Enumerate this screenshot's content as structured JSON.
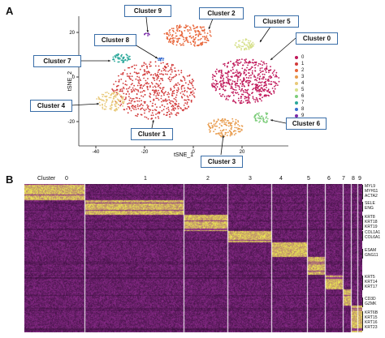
{
  "panels": {
    "a": "A",
    "b": "B"
  },
  "tsne": {
    "xlabel": "tSNE_1",
    "ylabel": "tSNE_2",
    "xticks": [
      "-40",
      "-20",
      "0",
      "20"
    ],
    "yticks": [
      "20",
      "0",
      "-20"
    ],
    "legend": [
      "0",
      "1",
      "2",
      "3",
      "4",
      "5",
      "6",
      "7",
      "8",
      "9"
    ],
    "colors": [
      "#c0185a",
      "#d23a3a",
      "#e8663a",
      "#e89a4a",
      "#e8c878",
      "#d6e08a",
      "#7ccc7a",
      "#2aa89a",
      "#3a6ed0",
      "#7a2aa8"
    ],
    "callouts": [
      {
        "label": "Cluster 9"
      },
      {
        "label": "Cluster 2"
      },
      {
        "label": "Cluster 5"
      },
      {
        "label": "Cluster 8"
      },
      {
        "label": "Cluster 0"
      },
      {
        "label": "Cluster 7"
      },
      {
        "label": "Cluster 4"
      },
      {
        "label": "Cluster 6"
      },
      {
        "label": "Cluster 1"
      },
      {
        "label": "Cluster 3"
      }
    ]
  },
  "heatmap": {
    "cluster_title": "Cluster",
    "clusters": [
      "0",
      "1",
      "2",
      "3",
      "4",
      "5",
      "6",
      "7",
      "8",
      "9"
    ],
    "genes": [
      [
        "MYL9",
        "MYH11",
        "ACTA2"
      ],
      [
        "SELE",
        "ENG"
      ],
      [
        "KRT8",
        "KRT18",
        "KRT19"
      ],
      [
        "COL1A1",
        "COL6A1"
      ],
      [
        "ESAM",
        "GNG11"
      ],
      [
        "KRT5",
        "KRT14",
        "KRT17"
      ],
      [
        "CD3D",
        "GZMK"
      ],
      [
        "KRT6B",
        "KRT15",
        "KRT16",
        "KRT23"
      ]
    ],
    "colors": {
      "low": "#2a0a2e",
      "mid": "#8a2a8a",
      "high": "#f0f050"
    }
  }
}
